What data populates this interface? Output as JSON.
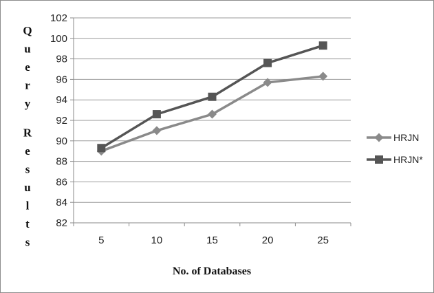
{
  "chart_data": {
    "type": "line",
    "title": "",
    "xlabel": "No. of Databases",
    "ylabel": "Query Results",
    "categories": [
      "5",
      "10",
      "15",
      "20",
      "25"
    ],
    "ylim": [
      82,
      102
    ],
    "yticks": [
      "82",
      "84",
      "86",
      "88",
      "90",
      "92",
      "94",
      "96",
      "98",
      "100",
      "102"
    ],
    "grid": "horizontal",
    "legend_position": "right",
    "series": [
      {
        "name": "HRJN",
        "marker": "diamond",
        "color": "#8a8a8a",
        "values": [
          89.0,
          91.0,
          92.6,
          95.7,
          96.3
        ]
      },
      {
        "name": "HRJN*",
        "marker": "square",
        "color": "#555555",
        "values": [
          89.3,
          92.6,
          94.3,
          97.6,
          99.3
        ]
      }
    ]
  }
}
